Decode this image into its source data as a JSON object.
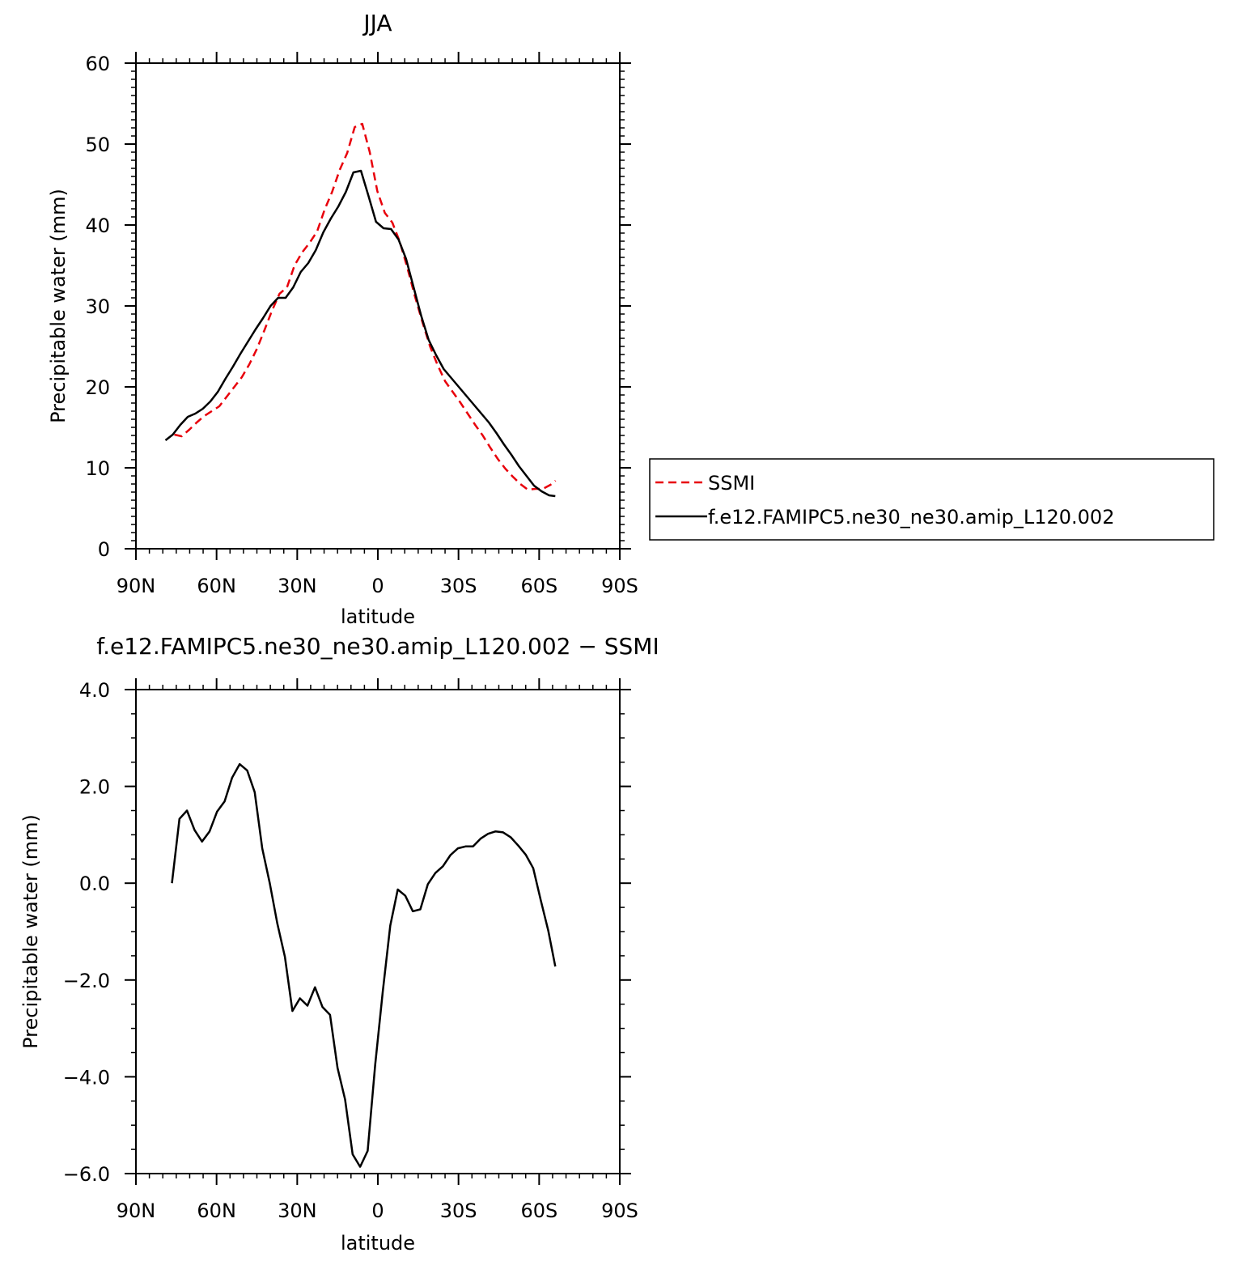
{
  "chart_data": [
    {
      "type": "line",
      "title": "JJA",
      "xlabel": "latitude",
      "ylabel": "Precipitable water (mm)",
      "xlim": [
        -90,
        90
      ],
      "ylim": [
        0,
        60
      ],
      "x_direction": "north-to-south",
      "x_ticks": [
        {
          "value": -90,
          "label": "90N"
        },
        {
          "value": -60,
          "label": "60N"
        },
        {
          "value": -30,
          "label": "30N"
        },
        {
          "value": 0,
          "label": "0"
        },
        {
          "value": 30,
          "label": "30S"
        },
        {
          "value": 60,
          "label": "60S"
        },
        {
          "value": 90,
          "label": "90S"
        }
      ],
      "y_ticks": [
        {
          "value": 0,
          "label": "0"
        },
        {
          "value": 10,
          "label": "10"
        },
        {
          "value": 20,
          "label": "20"
        },
        {
          "value": 30,
          "label": "30"
        },
        {
          "value": 40,
          "label": "40"
        },
        {
          "value": 50,
          "label": "50"
        },
        {
          "value": 60,
          "label": "60"
        }
      ],
      "grid": false,
      "legend_position": "right",
      "series": [
        {
          "name": "SSMI",
          "color": "#e8000b",
          "dash": "dashed",
          "x": [
            -75.7,
            -73,
            -70.2,
            -67.4,
            -64.6,
            -61.8,
            -59,
            -56.2,
            -53.4,
            -50.6,
            -47.8,
            -45,
            -42.2,
            -39.4,
            -36.6,
            -33.8,
            -31,
            -28.2,
            -25.4,
            -22.6,
            -19.8,
            -17,
            -14.2,
            -11.4,
            -8.6,
            -5.8,
            -3,
            -0.2,
            2.6,
            5.4,
            8.2,
            11,
            13.8,
            16.6,
            19.4,
            22.2,
            25,
            27.8,
            30.6,
            33.4,
            36.2,
            39,
            41.8,
            44.6,
            47.4,
            50.2,
            53,
            55.8,
            58.6,
            61.4,
            64.2,
            66.1
          ],
          "y": [
            14.1,
            13.9,
            14.7,
            15.6,
            16.4,
            17.0,
            17.6,
            18.8,
            20.0,
            21.2,
            22.8,
            24.7,
            27.0,
            29.4,
            31.5,
            32.3,
            35.0,
            36.6,
            37.8,
            39.2,
            41.9,
            44.1,
            46.8,
            48.9,
            52.1,
            52.5,
            49.0,
            44.2,
            41.5,
            40.3,
            37.9,
            34.7,
            31.2,
            28.0,
            25.0,
            22.7,
            20.7,
            19.4,
            18.1,
            16.7,
            15.3,
            14.0,
            12.5,
            11.1,
            9.9,
            8.9,
            8.0,
            7.3,
            7.4,
            7.4,
            7.9,
            8.4
          ]
        },
        {
          "name": "f.e12.FAMIPC5.ne30_ne30.amip_L120.002",
          "color": "#000000",
          "dash": "solid",
          "x": [
            -79,
            -76.3,
            -73.5,
            -70.7,
            -67.9,
            -65.1,
            -62.3,
            -59.5,
            -56.7,
            -53.9,
            -51.1,
            -48.3,
            -45.5,
            -42.7,
            -39.9,
            -37.1,
            -34.3,
            -31.5,
            -28.7,
            -25.9,
            -23.1,
            -20.3,
            -17.5,
            -14.7,
            -11.9,
            -9.1,
            -6.3,
            -3.5,
            -0.7,
            2.1,
            4.9,
            7.7,
            10.5,
            13.3,
            16.1,
            18.9,
            21.7,
            24.5,
            27.3,
            30.1,
            32.9,
            35.7,
            38.5,
            41.3,
            44.1,
            46.9,
            49.7,
            52.5,
            55.3,
            58.1,
            60.9,
            63.7,
            66.0
          ],
          "y": [
            13.4,
            14.1,
            15.3,
            16.3,
            16.7,
            17.3,
            18.2,
            19.4,
            21.0,
            22.5,
            24.1,
            25.6,
            27.1,
            28.5,
            30.0,
            31.0,
            31.0,
            32.3,
            34.2,
            35.3,
            36.9,
            39.1,
            40.8,
            42.3,
            44.1,
            46.5,
            46.7,
            43.6,
            40.4,
            39.6,
            39.5,
            38.2,
            35.8,
            32.3,
            28.8,
            25.8,
            23.9,
            22.2,
            21.1,
            20.0,
            18.9,
            17.8,
            16.7,
            15.6,
            14.3,
            12.9,
            11.6,
            10.2,
            9.0,
            7.8,
            7.1,
            6.6,
            6.5
          ]
        }
      ]
    },
    {
      "type": "line",
      "title": "f.e12.FAMIPC5.ne30_ne30.amip_L120.002 − SSMI",
      "xlabel": "latitude",
      "ylabel": "Precipitable water (mm)",
      "xlim": [
        -90,
        90
      ],
      "ylim": [
        -6,
        4
      ],
      "x_direction": "north-to-south",
      "x_ticks": [
        {
          "value": -90,
          "label": "90N"
        },
        {
          "value": -60,
          "label": "60N"
        },
        {
          "value": -30,
          "label": "30N"
        },
        {
          "value": 0,
          "label": "0"
        },
        {
          "value": 30,
          "label": "30S"
        },
        {
          "value": 60,
          "label": "60S"
        },
        {
          "value": 90,
          "label": "90S"
        }
      ],
      "y_ticks": [
        {
          "value": -6,
          "label": "−6.0"
        },
        {
          "value": -4,
          "label": "−4.0"
        },
        {
          "value": -2,
          "label": "−2.0"
        },
        {
          "value": 0,
          "label": "0.0"
        },
        {
          "value": 2,
          "label": "2.0"
        },
        {
          "value": 4,
          "label": "4.0"
        }
      ],
      "grid": false,
      "series": [
        {
          "color": "#000000",
          "dash": "solid",
          "x": [
            -76.6,
            -73.8,
            -71,
            -68.2,
            -65.4,
            -62.6,
            -59.8,
            -57,
            -54.2,
            -51.4,
            -48.6,
            -45.8,
            -43,
            -40.2,
            -37.4,
            -34.6,
            -31.8,
            -29,
            -26.2,
            -23.4,
            -20.6,
            -17.8,
            -15,
            -12.2,
            -9.4,
            -6.6,
            -3.8,
            -1,
            1.8,
            4.6,
            7.4,
            10.2,
            13,
            15.8,
            18.6,
            21.4,
            24.2,
            27,
            29.8,
            32.6,
            35.4,
            38.2,
            41,
            43.8,
            46.6,
            49.4,
            52.2,
            55,
            57.8,
            60.6,
            63.4,
            66.0
          ],
          "y": [
            0.0,
            1.33,
            1.5,
            1.1,
            0.86,
            1.07,
            1.48,
            1.69,
            2.18,
            2.46,
            2.33,
            1.88,
            0.72,
            0.0,
            -0.83,
            -1.52,
            -2.64,
            -2.38,
            -2.53,
            -2.15,
            -2.56,
            -2.72,
            -3.82,
            -4.47,
            -5.6,
            -5.86,
            -5.53,
            -3.75,
            -2.25,
            -0.88,
            -0.13,
            -0.26,
            -0.58,
            -0.54,
            -0.02,
            0.21,
            0.35,
            0.58,
            0.72,
            0.76,
            0.76,
            0.92,
            1.02,
            1.07,
            1.05,
            0.95,
            0.78,
            0.59,
            0.31,
            -0.35,
            -0.98,
            -1.72
          ]
        }
      ]
    }
  ]
}
